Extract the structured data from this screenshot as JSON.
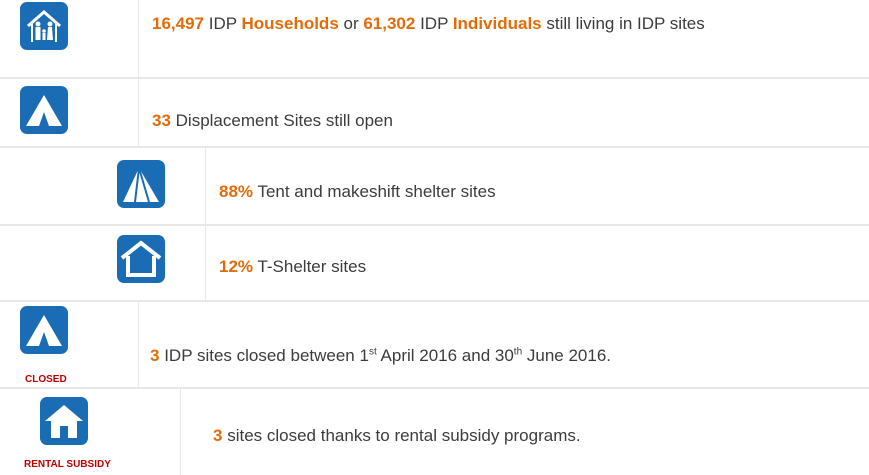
{
  "rows": [
    {
      "segments": [
        {
          "text": "16,497",
          "bold": true
        },
        {
          "text": " IDP "
        },
        {
          "text": "Households",
          "bold": true
        },
        {
          "text": " or "
        },
        {
          "text": "61,302",
          "bold": true
        },
        {
          "text": " IDP "
        },
        {
          "text": "Individuals",
          "bold": true
        },
        {
          "text": " still living in IDP sites"
        }
      ]
    },
    {
      "segments": [
        {
          "text": "33",
          "bold": true
        },
        {
          "text": " Displacement Sites still open"
        }
      ]
    },
    {
      "segments": [
        {
          "text": "88%",
          "bold": true
        },
        {
          "text": " Tent and makeshift shelter sites"
        }
      ]
    },
    {
      "segments": [
        {
          "text": "12%",
          "bold": true
        },
        {
          "text": " T-Shelter sites"
        }
      ]
    },
    {
      "icon_label": "CLOSED",
      "segments": [
        {
          "text": "3",
          "bold": true
        },
        {
          "text": " IDP sites closed between 1"
        },
        {
          "text": "st",
          "sup": true
        },
        {
          "text": " April 2016 and 30"
        },
        {
          "text": "th",
          "sup": true
        },
        {
          "text": " June 2016."
        }
      ]
    },
    {
      "icon_label": "RENTAL SUBSIDY",
      "segments": [
        {
          "text": "3",
          "bold": true
        },
        {
          "text": " sites closed thanks to rental subsidy programs."
        }
      ]
    }
  ]
}
